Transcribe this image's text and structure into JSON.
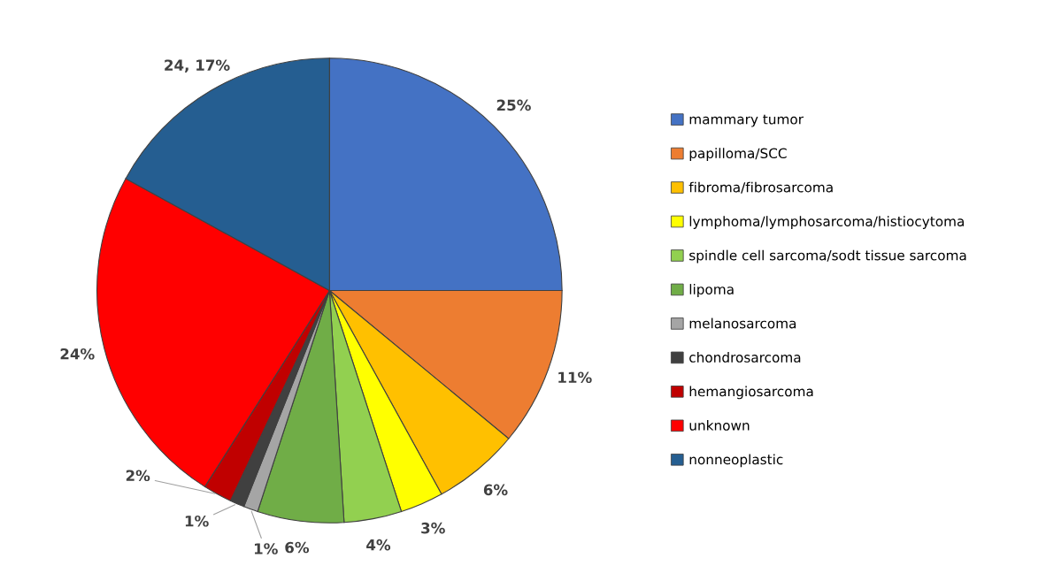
{
  "chart_data": {
    "type": "pie",
    "categories": [
      "mammary tumor",
      "papilloma/SCC",
      "fibroma/fibrosarcoma",
      "lymphoma/lymphosarcoma/histiocytoma",
      "spindle cell sarcoma/sodt tissue sarcoma",
      "lipoma",
      "melanosarcoma",
      "chondrosarcoma",
      "hemangiosarcoma",
      "unknown",
      "nonneoplastic"
    ],
    "values": [
      25,
      11,
      6,
      3,
      4,
      6,
      1,
      1,
      2,
      24,
      17
    ],
    "colors": [
      "#4472c4",
      "#ed7d31",
      "#ffc000",
      "#ffff00",
      "#92d050",
      "#70ad47",
      "#a5a5a5",
      "#404040",
      "#c00000",
      "#ff0000",
      "#255e91"
    ],
    "value_labels": [
      "25%",
      "11%",
      "6%",
      "3%",
      "4%",
      "6%",
      "1%",
      "1%",
      "2%",
      "24%",
      "24, 17%"
    ],
    "legend": "right"
  }
}
